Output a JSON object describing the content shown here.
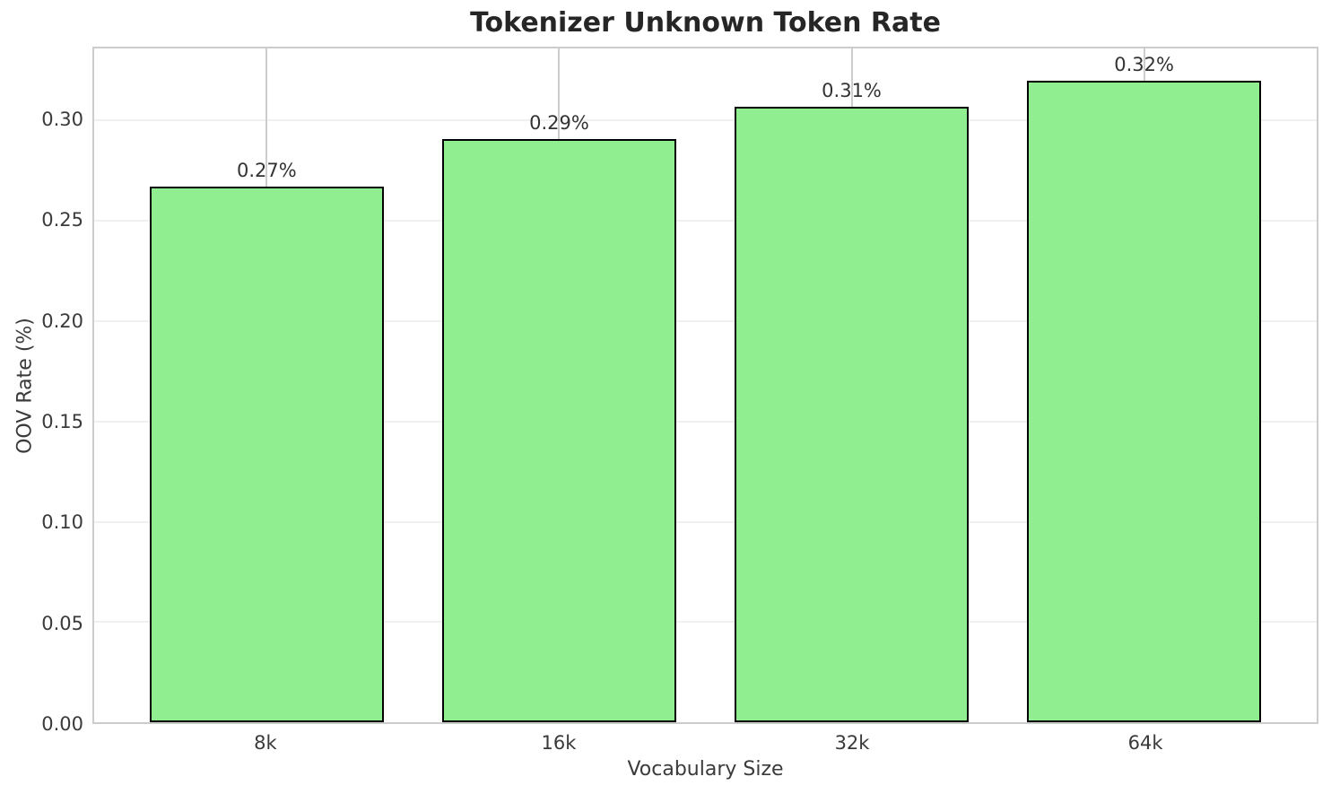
{
  "chart_data": {
    "type": "bar",
    "title": "Tokenizer Unknown Token Rate",
    "xlabel": "Vocabulary Size",
    "ylabel": "OOV Rate (%)",
    "categories": [
      "8k",
      "16k",
      "32k",
      "64k"
    ],
    "values": [
      0.267,
      0.291,
      0.307,
      0.32
    ],
    "bar_value_labels": [
      "0.27%",
      "0.29%",
      "0.31%",
      "0.32%"
    ],
    "ytick_values": [
      0.0,
      0.05,
      0.1,
      0.15,
      0.2,
      0.25,
      0.3
    ],
    "ytick_labels": [
      "0.00",
      "0.05",
      "0.10",
      "0.15",
      "0.20",
      "0.25",
      "0.30"
    ],
    "ylim": [
      0,
      0.336
    ],
    "xlim": [
      -0.59,
      3.59
    ],
    "bar_width_units": 0.8,
    "grid": "on",
    "legend": "none",
    "bar_fill_color": "#90EE90",
    "bar_edge_color": "#000000",
    "hgrid_color": "#f0f0f0",
    "vgrid_color": "#cdcdcd",
    "spine_color": "#cccccc",
    "title_color": "#262626",
    "tick_label_color": "#3a3a3a"
  }
}
